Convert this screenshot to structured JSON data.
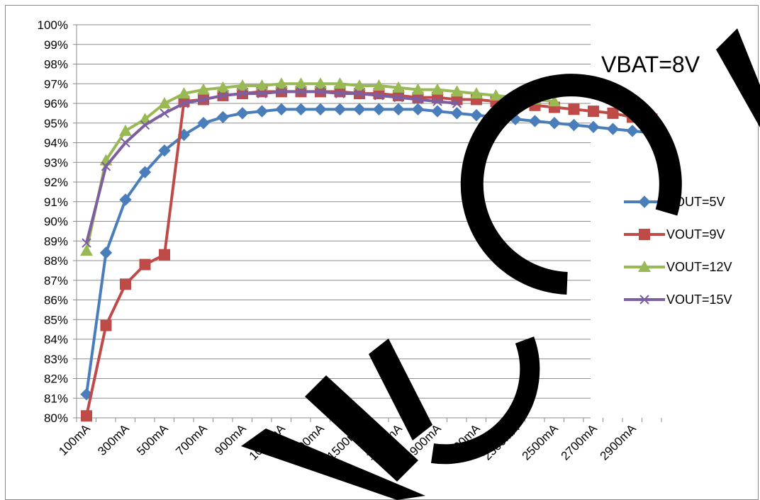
{
  "chart_data": {
    "type": "line",
    "annotation": "VBAT=8V",
    "ylim": [
      0.8,
      1.0
    ],
    "y_ticks": [
      "80%",
      "81%",
      "82%",
      "83%",
      "84%",
      "85%",
      "86%",
      "87%",
      "88%",
      "89%",
      "90%",
      "91%",
      "92%",
      "93%",
      "94%",
      "95%",
      "96%",
      "97%",
      "98%",
      "99%",
      "100%"
    ],
    "x": [
      "100mA",
      "200mA",
      "300mA",
      "400mA",
      "500mA",
      "600mA",
      "700mA",
      "800mA",
      "900mA",
      "1000mA",
      "1099mA",
      "1200mA",
      "1300mA",
      "1400mA",
      "1500mA",
      "1600mA",
      "1700mA",
      "1800mA",
      "1900mA",
      "2000mA",
      "2100mA",
      "2200mA",
      "2300mA",
      "2400mA",
      "2500mA",
      "2600mA",
      "2700mA",
      "2800mA",
      "2900mA",
      "3000mA"
    ],
    "x_tick_labels": [
      "100mA",
      "300mA",
      "500mA",
      "700mA",
      "900mA",
      "1099mA",
      "1300mA",
      "1500mA",
      "1700mA",
      "1900mA",
      "2100mA",
      "2300mA",
      "2500mA",
      "2700mA",
      "2900mA"
    ],
    "grid": "horizontal",
    "legend_position": "right",
    "series": [
      {
        "name": "VOUT=5V",
        "color": "#4a7ebb",
        "marker": "diamond",
        "values": [
          0.812,
          0.884,
          0.911,
          0.925,
          0.936,
          0.944,
          0.95,
          0.953,
          0.955,
          0.956,
          0.957,
          0.957,
          0.957,
          0.957,
          0.957,
          0.957,
          0.957,
          0.957,
          0.956,
          0.955,
          0.954,
          0.953,
          0.952,
          0.951,
          0.95,
          0.949,
          0.948,
          0.947,
          0.946,
          0.945
        ]
      },
      {
        "name": "VOUT=9V",
        "color": "#be4b48",
        "marker": "square",
        "values": [
          0.801,
          0.847,
          0.868,
          0.878,
          0.883,
          0.961,
          0.962,
          0.964,
          0.965,
          0.966,
          0.966,
          0.966,
          0.966,
          0.966,
          0.965,
          0.965,
          0.964,
          0.963,
          0.963,
          0.962,
          0.962,
          0.961,
          0.96,
          0.959,
          0.958,
          0.957,
          0.956,
          0.955,
          0.953,
          0.952
        ]
      },
      {
        "name": "VOUT=12V",
        "color": "#98b954",
        "marker": "triangle",
        "values": [
          0.885,
          0.931,
          0.946,
          0.952,
          0.96,
          0.965,
          0.967,
          0.968,
          0.969,
          0.969,
          0.97,
          0.97,
          0.97,
          0.97,
          0.969,
          0.969,
          0.968,
          0.967,
          0.967,
          0.966,
          0.965,
          0.964,
          0.963,
          0.962,
          0.961,
          null,
          null,
          null,
          null,
          null
        ]
      },
      {
        "name": "VOUT=15V",
        "color": "#7d5fa0",
        "marker": "x",
        "values": [
          0.889,
          0.928,
          0.94,
          0.949,
          0.955,
          0.96,
          0.962,
          0.964,
          0.965,
          0.965,
          0.966,
          0.966,
          0.966,
          0.965,
          0.965,
          0.964,
          0.963,
          0.962,
          0.961,
          0.96,
          null,
          null,
          null,
          null,
          null,
          null,
          null,
          null,
          null,
          null
        ]
      }
    ]
  }
}
